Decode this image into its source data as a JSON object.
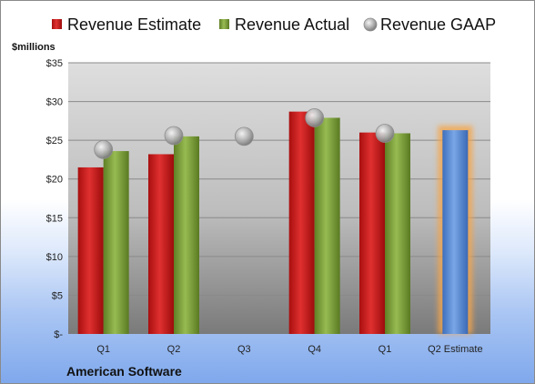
{
  "chart_data": {
    "type": "bar",
    "unit_label": "$millions",
    "company": "American Software",
    "categories": [
      "Q1",
      "Q2",
      "Q3",
      "Q4",
      "Q1",
      "Q2 Estimate"
    ],
    "series": [
      {
        "name": "Revenue Estimate",
        "kind": "bar",
        "color": "#d21f1f",
        "values": [
          21.5,
          23.2,
          null,
          28.7,
          26.0,
          null
        ]
      },
      {
        "name": "Revenue Actual",
        "kind": "bar",
        "color": "#7fa33a",
        "values": [
          23.6,
          25.5,
          null,
          27.9,
          25.9,
          null
        ]
      },
      {
        "name": "Revenue GAAP",
        "kind": "marker",
        "color": "#b8b8b8",
        "values": [
          23.8,
          25.6,
          25.5,
          27.9,
          25.9,
          null
        ]
      }
    ],
    "estimate_bar": {
      "category": "Q2 Estimate",
      "value": 26.3,
      "color": "#5b8fd6",
      "glow": "#f5a54a"
    },
    "yticks": [
      0,
      5,
      10,
      15,
      20,
      25,
      30,
      35
    ],
    "ytick_labels": [
      "$-",
      "$5",
      "$10",
      "$15",
      "$20",
      "$25",
      "$30",
      "$35"
    ],
    "ylim": [
      0,
      35
    ],
    "grid": true,
    "legend_position": "top"
  }
}
